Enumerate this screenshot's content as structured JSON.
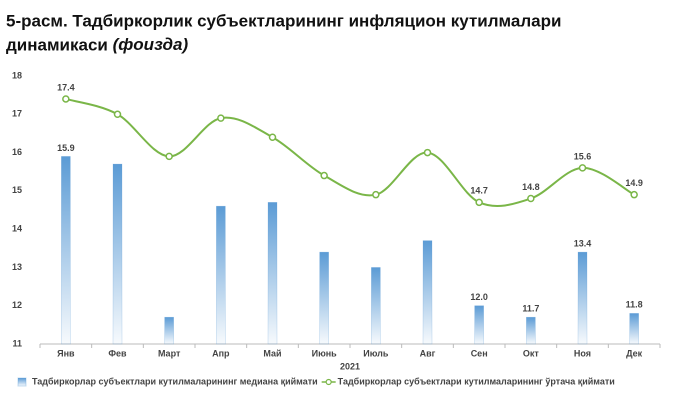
{
  "chart_data": {
    "type": "bar-line",
    "title": "5-расм.  Тадбиркорлик субъектларининг инфляцион кутилмалари динамикаси",
    "title_note": "(фоизда)",
    "x_label": "2021",
    "categories": [
      "Янв",
      "Фев",
      "Март",
      "Апр",
      "Май",
      "Июнь",
      "Июль",
      "Авг",
      "Сен",
      "Окт",
      "Ноя",
      "Дек"
    ],
    "series": [
      {
        "name": "Тадбиркорлар субъектлари кутилмаларининг медиана қиймати",
        "type": "bar",
        "color": "#5b9bd5",
        "values": [
          15.9,
          15.7,
          11.7,
          14.6,
          14.7,
          13.4,
          13.0,
          13.7,
          12.0,
          11.7,
          13.4,
          11.8
        ],
        "value_labels": [
          "15.9",
          null,
          null,
          null,
          null,
          null,
          null,
          null,
          "12.0",
          "11.7",
          "13.4",
          "11.8"
        ]
      },
      {
        "name": "Тадбиркорлар субъектлари кутилмаларининг ўртача қиймати",
        "type": "line",
        "color": "#7ab648",
        "values": [
          17.4,
          17.0,
          15.9,
          16.9,
          16.4,
          15.4,
          14.9,
          16.0,
          14.7,
          14.8,
          15.6,
          14.9
        ],
        "value_labels": [
          "17.4",
          null,
          null,
          null,
          null,
          null,
          null,
          null,
          "14.7",
          "14.8",
          "15.6",
          "14.9"
        ]
      }
    ],
    "ylim": [
      11,
      18
    ],
    "yticks": [
      11,
      12,
      13,
      14,
      15,
      16,
      17,
      18
    ],
    "grid": false,
    "legend": "bottom"
  }
}
